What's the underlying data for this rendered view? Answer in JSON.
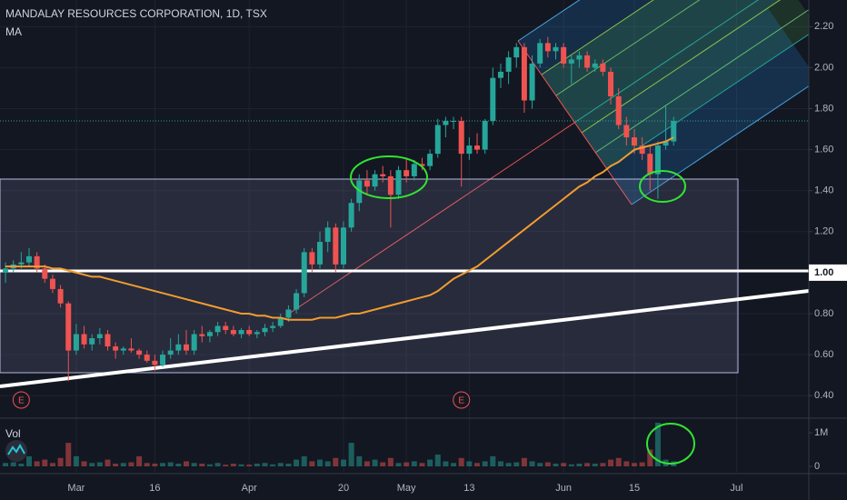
{
  "chart_data": {
    "type": "candlestick",
    "title": "MANDALAY RESOURCES CORPORATION, 1D, TSX",
    "indicator": "MA",
    "up_color": "#26a69a",
    "down_color": "#ef5350",
    "ma_color": "#f39c2e",
    "grid": true,
    "xlim": [
      -0.7,
      102.2
    ],
    "xticks": [
      {
        "value": 9,
        "label": "Mar"
      },
      {
        "value": 19,
        "label": "16"
      },
      {
        "value": 31,
        "label": "Apr"
      },
      {
        "value": 43,
        "label": "20"
      },
      {
        "value": 51,
        "label": "May"
      },
      {
        "value": 59,
        "label": "13"
      },
      {
        "value": 71,
        "label": "Jun"
      },
      {
        "value": 80,
        "label": "15"
      },
      {
        "value": 93,
        "label": "Jul"
      }
    ],
    "ylim": [
      0.29,
      2.33
    ],
    "yticks": [
      {
        "value": 0.4,
        "label": "0.40"
      },
      {
        "value": 0.6,
        "label": "0.60"
      },
      {
        "value": 0.8,
        "label": "0.80"
      },
      {
        "value": 1.0,
        "label": "1.00"
      },
      {
        "value": 1.2,
        "label": "1.20"
      },
      {
        "value": 1.4,
        "label": "1.40"
      },
      {
        "value": 1.6,
        "label": "1.60"
      },
      {
        "value": 1.8,
        "label": "1.80"
      },
      {
        "value": 2.0,
        "label": "2.00"
      },
      {
        "value": 2.2,
        "label": "2.20"
      }
    ],
    "hline": {
      "value": 1.0,
      "label": "1.00"
    },
    "ohlc": [
      [
        1.0,
        1.05,
        0.95,
        1.02
      ],
      [
        1.02,
        1.06,
        1.0,
        1.04
      ],
      [
        1.04,
        1.1,
        1.02,
        1.05
      ],
      [
        1.05,
        1.12,
        1.03,
        1.08
      ],
      [
        1.08,
        1.1,
        1.0,
        1.02
      ],
      [
        1.02,
        1.04,
        0.95,
        0.97
      ],
      [
        0.97,
        0.99,
        0.9,
        0.92
      ],
      [
        0.92,
        0.94,
        0.83,
        0.85
      ],
      [
        0.85,
        0.86,
        0.47,
        0.62
      ],
      [
        0.62,
        0.75,
        0.6,
        0.7
      ],
      [
        0.7,
        0.74,
        0.63,
        0.65
      ],
      [
        0.65,
        0.7,
        0.62,
        0.68
      ],
      [
        0.68,
        0.73,
        0.65,
        0.7
      ],
      [
        0.7,
        0.72,
        0.62,
        0.64
      ],
      [
        0.64,
        0.66,
        0.58,
        0.62
      ],
      [
        0.62,
        0.64,
        0.6,
        0.63
      ],
      [
        0.63,
        0.68,
        0.61,
        0.62
      ],
      [
        0.62,
        0.63,
        0.58,
        0.6
      ],
      [
        0.6,
        0.62,
        0.56,
        0.57
      ],
      [
        0.57,
        0.6,
        0.52,
        0.55
      ],
      [
        0.55,
        0.62,
        0.54,
        0.6
      ],
      [
        0.6,
        0.68,
        0.58,
        0.62
      ],
      [
        0.62,
        0.7,
        0.6,
        0.65
      ],
      [
        0.65,
        0.72,
        0.6,
        0.62
      ],
      [
        0.62,
        0.72,
        0.6,
        0.7
      ],
      [
        0.7,
        0.74,
        0.66,
        0.69
      ],
      [
        0.69,
        0.72,
        0.66,
        0.71
      ],
      [
        0.71,
        0.76,
        0.69,
        0.74
      ],
      [
        0.74,
        0.76,
        0.7,
        0.72
      ],
      [
        0.72,
        0.74,
        0.69,
        0.7
      ],
      [
        0.7,
        0.73,
        0.68,
        0.72
      ],
      [
        0.72,
        0.74,
        0.69,
        0.7
      ],
      [
        0.7,
        0.72,
        0.68,
        0.71
      ],
      [
        0.71,
        0.75,
        0.69,
        0.73
      ],
      [
        0.73,
        0.76,
        0.71,
        0.74
      ],
      [
        0.74,
        0.8,
        0.73,
        0.78
      ],
      [
        0.78,
        0.84,
        0.76,
        0.82
      ],
      [
        0.82,
        0.92,
        0.8,
        0.9
      ],
      [
        0.9,
        1.12,
        0.88,
        1.1
      ],
      [
        1.1,
        1.12,
        1.0,
        1.04
      ],
      [
        1.04,
        1.2,
        1.02,
        1.15
      ],
      [
        1.15,
        1.25,
        1.1,
        1.22
      ],
      [
        1.22,
        1.24,
        1.0,
        1.04
      ],
      [
        1.04,
        1.25,
        1.02,
        1.22
      ],
      [
        1.22,
        1.36,
        1.2,
        1.34
      ],
      [
        1.34,
        1.48,
        1.3,
        1.45
      ],
      [
        1.45,
        1.5,
        1.38,
        1.42
      ],
      [
        1.42,
        1.5,
        1.4,
        1.48
      ],
      [
        1.48,
        1.52,
        1.44,
        1.47
      ],
      [
        1.47,
        1.5,
        1.22,
        1.38
      ],
      [
        1.38,
        1.52,
        1.36,
        1.5
      ],
      [
        1.5,
        1.56,
        1.44,
        1.47
      ],
      [
        1.47,
        1.55,
        1.45,
        1.53
      ],
      [
        1.53,
        1.56,
        1.5,
        1.52
      ],
      [
        1.52,
        1.6,
        1.5,
        1.58
      ],
      [
        1.58,
        1.75,
        1.56,
        1.72
      ],
      [
        1.72,
        1.76,
        1.66,
        1.74
      ],
      [
        1.74,
        1.76,
        1.7,
        1.74
      ],
      [
        1.74,
        1.76,
        1.42,
        1.58
      ],
      [
        1.58,
        1.66,
        1.55,
        1.62
      ],
      [
        1.62,
        1.68,
        1.58,
        1.6
      ],
      [
        1.6,
        1.75,
        1.58,
        1.74
      ],
      [
        1.74,
        2.0,
        1.72,
        1.95
      ],
      [
        1.95,
        2.02,
        1.9,
        1.98
      ],
      [
        1.98,
        2.08,
        1.92,
        2.05
      ],
      [
        2.05,
        2.12,
        2.0,
        2.1
      ],
      [
        2.1,
        2.12,
        1.78,
        1.84
      ],
      [
        1.84,
        2.06,
        1.8,
        2.02
      ],
      [
        2.02,
        2.14,
        2.0,
        2.12
      ],
      [
        2.12,
        2.15,
        2.05,
        2.08
      ],
      [
        2.08,
        2.12,
        2.04,
        2.1
      ],
      [
        2.1,
        2.12,
        2.0,
        2.02
      ],
      [
        2.02,
        2.06,
        1.92,
        2.04
      ],
      [
        2.04,
        2.08,
        2.0,
        2.06
      ],
      [
        2.06,
        2.08,
        1.98,
        2.0
      ],
      [
        2.0,
        2.04,
        1.98,
        2.02
      ],
      [
        2.02,
        2.04,
        1.96,
        1.98
      ],
      [
        1.98,
        2.0,
        1.82,
        1.86
      ],
      [
        1.86,
        1.9,
        1.7,
        1.72
      ],
      [
        1.72,
        1.76,
        1.62,
        1.66
      ],
      [
        1.66,
        1.7,
        1.58,
        1.62
      ],
      [
        1.62,
        1.66,
        1.55,
        1.58
      ],
      [
        1.58,
        1.62,
        1.4,
        1.48
      ],
      [
        1.48,
        1.64,
        1.36,
        1.62
      ],
      [
        1.62,
        1.82,
        1.6,
        1.64
      ],
      [
        1.64,
        1.76,
        1.62,
        1.74
      ]
    ],
    "ma": [
      1.03,
      1.03,
      1.03,
      1.03,
      1.03,
      1.03,
      1.02,
      1.02,
      1.01,
      1.0,
      0.99,
      0.98,
      0.98,
      0.97,
      0.96,
      0.95,
      0.94,
      0.93,
      0.92,
      0.91,
      0.9,
      0.89,
      0.88,
      0.87,
      0.86,
      0.85,
      0.84,
      0.83,
      0.82,
      0.81,
      0.8,
      0.8,
      0.79,
      0.79,
      0.78,
      0.78,
      0.77,
      0.77,
      0.77,
      0.77,
      0.78,
      0.78,
      0.78,
      0.79,
      0.8,
      0.8,
      0.81,
      0.82,
      0.83,
      0.84,
      0.85,
      0.86,
      0.87,
      0.88,
      0.89,
      0.91,
      0.94,
      0.97,
      0.99,
      1.01,
      1.03,
      1.06,
      1.09,
      1.12,
      1.15,
      1.18,
      1.21,
      1.24,
      1.27,
      1.3,
      1.33,
      1.36,
      1.39,
      1.42,
      1.44,
      1.47,
      1.49,
      1.52,
      1.54,
      1.57,
      1.6,
      1.61,
      1.62,
      1.63,
      1.64,
      1.66
    ],
    "volume_label": "Vol",
    "volume_ylim": [
      -0.19,
      1.38
    ],
    "volume_yticks": [
      {
        "value": 1,
        "label": "1M"
      },
      0
    ],
    "volume": [
      0.1,
      0.12,
      0.08,
      0.3,
      0.15,
      0.2,
      0.1,
      0.25,
      0.7,
      0.3,
      0.15,
      0.1,
      0.12,
      0.2,
      0.08,
      0.1,
      0.12,
      0.3,
      0.1,
      0.08,
      0.1,
      0.12,
      0.08,
      0.15,
      0.1,
      0.08,
      0.06,
      0.1,
      0.05,
      0.08,
      0.06,
      0.05,
      0.08,
      0.1,
      0.06,
      0.1,
      0.08,
      0.2,
      0.3,
      0.15,
      0.2,
      0.15,
      0.25,
      0.2,
      0.7,
      0.3,
      0.15,
      0.2,
      0.12,
      0.25,
      0.1,
      0.12,
      0.15,
      0.1,
      0.2,
      0.35,
      0.15,
      0.1,
      0.25,
      0.15,
      0.1,
      0.15,
      0.3,
      0.15,
      0.1,
      0.12,
      0.25,
      0.15,
      0.1,
      0.12,
      0.08,
      0.1,
      0.06,
      0.08,
      0.1,
      0.08,
      0.1,
      0.2,
      0.25,
      0.15,
      0.1,
      0.12,
      0.5,
      1.3,
      0.2,
      0.15
    ],
    "earnings": [
      {
        "x": 2,
        "label": "E"
      },
      {
        "x": 58,
        "label": "E"
      }
    ]
  }
}
